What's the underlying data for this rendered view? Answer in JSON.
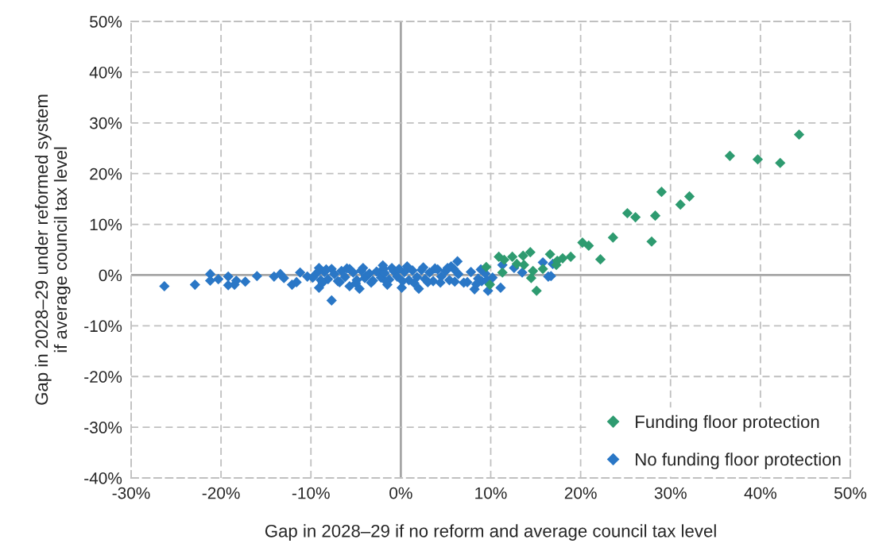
{
  "chart_data": {
    "type": "scatter",
    "xlabel": "Gap in 2028–29 if no reform and average council tax level",
    "ylabel": "Gap in 2028–29 under reformed system\nif average council tax level",
    "xlim": [
      -30,
      50
    ],
    "ylim": [
      -40,
      50
    ],
    "xticks": [
      {
        "value": -30,
        "label": "-30%"
      },
      {
        "value": -20,
        "label": "-20%"
      },
      {
        "value": -10,
        "label": "-10%"
      },
      {
        "value": 0,
        "label": "0%"
      },
      {
        "value": 10,
        "label": "10%"
      },
      {
        "value": 20,
        "label": "20%"
      },
      {
        "value": 30,
        "label": "30%"
      },
      {
        "value": 40,
        "label": "40%"
      },
      {
        "value": 50,
        "label": "50%"
      }
    ],
    "yticks": [
      {
        "value": -40,
        "label": "-40%"
      },
      {
        "value": -30,
        "label": "-30%"
      },
      {
        "value": -20,
        "label": "-20%"
      },
      {
        "value": -10,
        "label": "-10%"
      },
      {
        "value": 0,
        "label": "0%"
      },
      {
        "value": 10,
        "label": "10%"
      },
      {
        "value": 20,
        "label": "20%"
      },
      {
        "value": 30,
        "label": "30%"
      },
      {
        "value": 40,
        "label": "40%"
      },
      {
        "value": 50,
        "label": "50%"
      }
    ],
    "grid": true,
    "legend": "bottom right",
    "marker": "diamond",
    "series": [
      {
        "name": "Funding floor protection",
        "color": "#2e9b70",
        "x": [
          44.3,
          36.6,
          39.7,
          42.2,
          29.0,
          32.1,
          31.1,
          25.2,
          26.1,
          28.3,
          23.6,
          27.9,
          22.2,
          20.2,
          20.9,
          10.9,
          11.5,
          12.4,
          13.6,
          14.4,
          12.9,
          13.7,
          16.6,
          17.4,
          18.0,
          18.9,
          17.3,
          14.7,
          14.5,
          15.8,
          15.1,
          11.3,
          9.9,
          9.5
        ],
        "values": [
          27.7,
          23.5,
          22.8,
          22.1,
          16.4,
          15.5,
          13.9,
          12.2,
          11.4,
          11.7,
          7.4,
          6.6,
          3.1,
          6.4,
          5.8,
          3.6,
          3.0,
          3.6,
          3.8,
          4.5,
          2.2,
          2.0,
          4.1,
          2.8,
          3.3,
          3.6,
          2.0,
          0.8,
          -0.6,
          1.2,
          -3.1,
          0.5,
          -1.9,
          1.6
        ]
      },
      {
        "name": "No funding floor protection",
        "color": "#2a77c6",
        "x": [
          11.3,
          12.6,
          13.5,
          15.8,
          16.9,
          16.4,
          16.7,
          11.1,
          9.7,
          8.2,
          7.4,
          6.3,
          5.6,
          2.0,
          0.7,
          -26.3,
          -22.9,
          -21.2,
          -21.2,
          -20.3,
          -19.2,
          -19.2,
          -18.5,
          -18.3,
          -17.3,
          -16.0,
          -14.1,
          -13.4,
          -13.0,
          -12.1,
          -11.6,
          -11.2,
          -10.4,
          -9.1,
          -9.1,
          -7.7,
          -7.7,
          -5.7,
          -5.7,
          -4.6,
          -3.9,
          -2.4,
          -1.9,
          -1.0,
          -1.5,
          0.1,
          -9.8,
          -9.4,
          -8.9,
          -8.5,
          -8.1,
          -7.4,
          -7.0,
          -6.6,
          -6.2,
          -5.3,
          -4.9,
          -4.4,
          -4.0,
          -3.5,
          -3.1,
          -2.7,
          -2.2,
          -1.8,
          -1.3,
          -0.8,
          -0.4,
          0.4,
          0.9,
          1.3,
          1.8,
          2.3,
          2.7,
          3.2,
          3.6,
          4.1,
          4.5,
          5.0,
          5.4,
          5.9,
          6.4,
          7.0,
          7.8,
          8.6,
          9.0,
          9.4,
          9.8,
          10.2,
          -8.7,
          -6.8,
          -5.0,
          -3.3,
          -1.6,
          0.2,
          1.5,
          3.0,
          4.4,
          6.0,
          8.4,
          9.6,
          -8.3,
          -6.0,
          -4.2,
          -2.0,
          -0.2,
          2.5,
          3.8,
          5.2,
          8.9
        ],
        "values": [
          2.0,
          1.4,
          0.5,
          2.5,
          2.2,
          -0.3,
          -0.2,
          -2.5,
          -3.1,
          -2.8,
          -1.4,
          2.7,
          1.7,
          -2.7,
          1.7,
          -2.2,
          -1.9,
          0.2,
          -1.1,
          -0.8,
          -0.3,
          -2.0,
          -1.9,
          -1.1,
          -1.3,
          -0.2,
          -0.3,
          0.2,
          -0.6,
          -1.9,
          -1.4,
          0.5,
          -0.3,
          1.4,
          -2.5,
          -5.0,
          1.2,
          1.2,
          -2.2,
          -2.7,
          -0.2,
          0.5,
          1.2,
          1.4,
          -1.9,
          -2.5,
          -0.5,
          0.3,
          -1.0,
          0.6,
          -0.8,
          0.2,
          -1.2,
          0.8,
          -0.4,
          0.5,
          -1.0,
          0.9,
          -0.6,
          0.3,
          -1.1,
          0.7,
          -0.5,
          0.4,
          -0.9,
          0.8,
          -0.3,
          0.6,
          -1.0,
          0.9,
          -0.4,
          1.0,
          -0.8,
          0.5,
          -1.2,
          1.1,
          -0.3,
          0.8,
          -1.0,
          1.2,
          0.2,
          -1.5,
          0.6,
          -0.7,
          -1.2,
          0.3,
          -1.6,
          -0.5,
          -1.5,
          -1.4,
          -1.6,
          -1.5,
          -1.3,
          -1.2,
          -1.6,
          -1.4,
          -1.5,
          -1.3,
          -1.8,
          -1.0,
          1.1,
          1.3,
          1.4,
          1.9,
          1.2,
          1.5,
          1.3,
          1.4,
          1.1
        ]
      }
    ]
  }
}
